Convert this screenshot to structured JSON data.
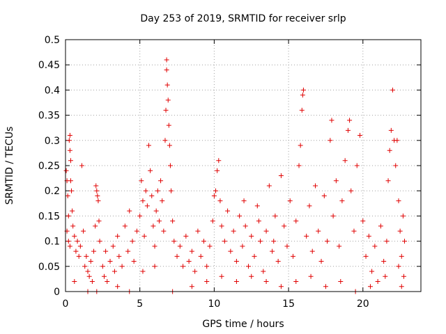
{
  "chart_data": {
    "type": "scatter",
    "title": "Day 253 of 2019, SRMTID for receiver srlp",
    "xlabel": "GPS time / hours",
    "ylabel": "SRMTID / TECUs",
    "xlim": [
      0,
      23.9
    ],
    "ylim": [
      0,
      0.5
    ],
    "grid": true,
    "x_ticks": [
      "0",
      "5",
      "10",
      "15",
      "20"
    ],
    "x_tick_values": [
      0,
      5,
      10,
      15,
      20
    ],
    "y_ticks": [
      "0",
      "0.05",
      "0.1",
      "0.15",
      "0.2",
      "0.25",
      "0.3",
      "0.35",
      "0.4",
      "0.45",
      "0.5"
    ],
    "y_tick_values": [
      0,
      0.05,
      0.1,
      0.15,
      0.2,
      0.25,
      0.3,
      0.35,
      0.4,
      0.45,
      0.5
    ],
    "marker": "plus",
    "color": "#e00000",
    "series": [
      {
        "name": "SRMTID",
        "points": [
          [
            0.05,
            0.24
          ],
          [
            0.1,
            0.22
          ],
          [
            0.15,
            0.19
          ],
          [
            0.2,
            0.15
          ],
          [
            0.25,
            0.3
          ],
          [
            0.3,
            0.31
          ],
          [
            0.3,
            0.28
          ],
          [
            0.35,
            0.26
          ],
          [
            0.35,
            0.22
          ],
          [
            0.4,
            0.2
          ],
          [
            0.1,
            0.12
          ],
          [
            0.2,
            0.1
          ],
          [
            0.3,
            0.09
          ],
          [
            0.45,
            0.16
          ],
          [
            0.5,
            0.13
          ],
          [
            0.6,
            0.11
          ],
          [
            0.7,
            0.08
          ],
          [
            0.8,
            0.1
          ],
          [
            0.9,
            0.07
          ],
          [
            1.0,
            0.09
          ],
          [
            1.1,
            0.25
          ],
          [
            1.2,
            0.12
          ],
          [
            1.3,
            0.05
          ],
          [
            1.4,
            0.07
          ],
          [
            1.5,
            0.04
          ],
          [
            1.6,
            0.03
          ],
          [
            1.7,
            0.06
          ],
          [
            1.8,
            0.02
          ],
          [
            1.9,
            0.08
          ],
          [
            2.0,
            0.13
          ],
          [
            2.05,
            0.21
          ],
          [
            2.1,
            0.2
          ],
          [
            2.15,
            0.19
          ],
          [
            2.2,
            0.18
          ],
          [
            2.25,
            0.14
          ],
          [
            2.3,
            0.1
          ],
          [
            2.5,
            0.05
          ],
          [
            2.6,
            0.03
          ],
          [
            2.7,
            0.08
          ],
          [
            2.8,
            0.02
          ],
          [
            3.0,
            0.06
          ],
          [
            3.2,
            0.09
          ],
          [
            3.3,
            0.04
          ],
          [
            3.5,
            0.11
          ],
          [
            3.6,
            0.07
          ],
          [
            3.8,
            0.05
          ],
          [
            4.0,
            0.13
          ],
          [
            4.2,
            0.08
          ],
          [
            4.3,
            0.16
          ],
          [
            4.5,
            0.1
          ],
          [
            4.6,
            0.06
          ],
          [
            4.8,
            0.12
          ],
          [
            5.0,
            0.15
          ],
          [
            5.1,
            0.22
          ],
          [
            5.2,
            0.18
          ],
          [
            5.3,
            0.11
          ],
          [
            5.4,
            0.2
          ],
          [
            5.5,
            0.17
          ],
          [
            5.6,
            0.29
          ],
          [
            5.7,
            0.24
          ],
          [
            5.8,
            0.19
          ],
          [
            5.9,
            0.13
          ],
          [
            6.0,
            0.09
          ],
          [
            6.1,
            0.16
          ],
          [
            6.2,
            0.2
          ],
          [
            6.3,
            0.14
          ],
          [
            6.4,
            0.22
          ],
          [
            6.5,
            0.18
          ],
          [
            6.6,
            0.12
          ],
          [
            6.7,
            0.3
          ],
          [
            6.75,
            0.36
          ],
          [
            6.8,
            0.46
          ],
          [
            6.8,
            0.44
          ],
          [
            6.85,
            0.41
          ],
          [
            6.9,
            0.38
          ],
          [
            6.95,
            0.33
          ],
          [
            7.0,
            0.29
          ],
          [
            7.05,
            0.25
          ],
          [
            7.1,
            0.2
          ],
          [
            7.2,
            0.14
          ],
          [
            7.3,
            0.1
          ],
          [
            7.5,
            0.07
          ],
          [
            7.7,
            0.09
          ],
          [
            7.9,
            0.05
          ],
          [
            8.1,
            0.11
          ],
          [
            8.3,
            0.06
          ],
          [
            8.5,
            0.08
          ],
          [
            8.7,
            0.04
          ],
          [
            8.9,
            0.12
          ],
          [
            9.1,
            0.07
          ],
          [
            9.3,
            0.1
          ],
          [
            9.5,
            0.05
          ],
          [
            9.7,
            0.09
          ],
          [
            9.9,
            0.14
          ],
          [
            10.0,
            0.19
          ],
          [
            10.1,
            0.2
          ],
          [
            10.2,
            0.24
          ],
          [
            10.3,
            0.26
          ],
          [
            10.4,
            0.18
          ],
          [
            10.5,
            0.13
          ],
          [
            10.7,
            0.1
          ],
          [
            10.9,
            0.16
          ],
          [
            11.1,
            0.08
          ],
          [
            11.3,
            0.12
          ],
          [
            11.5,
            0.06
          ],
          [
            11.7,
            0.15
          ],
          [
            11.9,
            0.09
          ],
          [
            12.1,
            0.13
          ],
          [
            12.3,
            0.05
          ],
          [
            12.5,
            0.11
          ],
          [
            12.7,
            0.07
          ],
          [
            12.9,
            0.17
          ],
          [
            13.1,
            0.1
          ],
          [
            13.3,
            0.04
          ],
          [
            13.5,
            0.12
          ],
          [
            13.7,
            0.21
          ],
          [
            13.9,
            0.08
          ],
          [
            14.1,
            0.15
          ],
          [
            14.3,
            0.06
          ],
          [
            14.5,
            0.23
          ],
          [
            14.7,
            0.13
          ],
          [
            14.9,
            0.09
          ],
          [
            15.1,
            0.18
          ],
          [
            15.3,
            0.07
          ],
          [
            15.5,
            0.14
          ],
          [
            15.7,
            0.25
          ],
          [
            15.8,
            0.29
          ],
          [
            15.9,
            0.36
          ],
          [
            15.95,
            0.39
          ],
          [
            16.0,
            0.4
          ],
          [
            16.2,
            0.11
          ],
          [
            16.4,
            0.17
          ],
          [
            16.6,
            0.08
          ],
          [
            16.8,
            0.21
          ],
          [
            17.0,
            0.12
          ],
          [
            17.2,
            0.06
          ],
          [
            17.4,
            0.19
          ],
          [
            17.6,
            0.1
          ],
          [
            17.8,
            0.3
          ],
          [
            17.9,
            0.34
          ],
          [
            18.0,
            0.15
          ],
          [
            18.2,
            0.22
          ],
          [
            18.4,
            0.09
          ],
          [
            18.6,
            0.18
          ],
          [
            18.8,
            0.26
          ],
          [
            19.0,
            0.32
          ],
          [
            19.1,
            0.34
          ],
          [
            19.2,
            0.2
          ],
          [
            19.4,
            0.12
          ],
          [
            19.6,
            0.25
          ],
          [
            19.8,
            0.31
          ],
          [
            20.0,
            0.14
          ],
          [
            20.2,
            0.07
          ],
          [
            20.4,
            0.11
          ],
          [
            20.6,
            0.04
          ],
          [
            20.8,
            0.09
          ],
          [
            21.0,
            0.02
          ],
          [
            21.2,
            0.13
          ],
          [
            21.4,
            0.06
          ],
          [
            21.6,
            0.1
          ],
          [
            21.7,
            0.22
          ],
          [
            21.8,
            0.28
          ],
          [
            21.9,
            0.32
          ],
          [
            22.0,
            0.4
          ],
          [
            22.1,
            0.3
          ],
          [
            22.2,
            0.25
          ],
          [
            22.3,
            0.3
          ],
          [
            22.4,
            0.18
          ],
          [
            22.5,
            0.12
          ],
          [
            22.6,
            0.07
          ],
          [
            22.7,
            0.15
          ],
          [
            22.8,
            0.1
          ],
          [
            22.75,
            0.03
          ],
          [
            22.6,
            0.01
          ],
          [
            22.4,
            0.05
          ],
          [
            21.5,
            0.03
          ],
          [
            20.5,
            0.01
          ],
          [
            19.5,
            0.0
          ],
          [
            18.5,
            0.02
          ],
          [
            17.5,
            0.01
          ],
          [
            16.5,
            0.03
          ],
          [
            15.5,
            0.02
          ],
          [
            14.5,
            0.01
          ],
          [
            13.5,
            0.02
          ],
          [
            12.5,
            0.03
          ],
          [
            11.5,
            0.02
          ],
          [
            10.5,
            0.03
          ],
          [
            9.5,
            0.02
          ],
          [
            8.5,
            0.01
          ],
          [
            7.2,
            0.0
          ],
          [
            4.3,
            0.0
          ],
          [
            2.1,
            0.0
          ],
          [
            3.5,
            0.01
          ],
          [
            1.5,
            0.0
          ],
          [
            0.6,
            0.02
          ],
          [
            6.0,
            0.05
          ],
          [
            5.2,
            0.04
          ],
          [
            12.0,
            0.18
          ],
          [
            13.0,
            0.14
          ],
          [
            14.0,
            0.1
          ]
        ]
      }
    ]
  }
}
